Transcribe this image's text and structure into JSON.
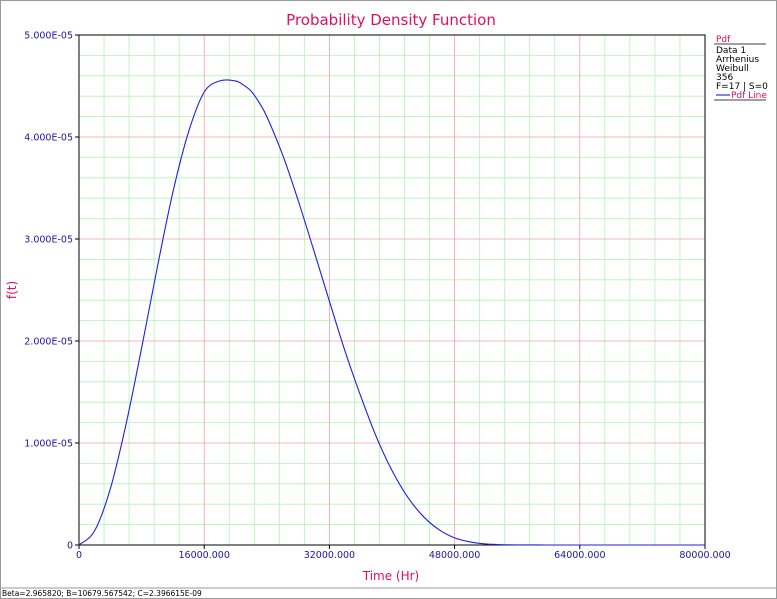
{
  "chart_data": {
    "type": "line",
    "title": "Probability Density Function",
    "xlabel": "Time (Hr)",
    "ylabel": "f(t)",
    "xlim": [
      0,
      80000
    ],
    "ylim": [
      0,
      5e-05
    ],
    "x_ticks": [
      0,
      16000,
      32000,
      48000,
      64000,
      80000
    ],
    "x_tick_labels": [
      "0",
      "16000.000",
      "32000.000",
      "48000.000",
      "64000.000",
      "80000.000"
    ],
    "y_ticks": [
      0,
      1e-05,
      2e-05,
      3e-05,
      4e-05,
      5e-05
    ],
    "y_tick_labels": [
      "0",
      "1.000E-05",
      "2.000E-05",
      "3.000E-05",
      "4.000E-05",
      "5.000E-05"
    ],
    "grid": true,
    "legend_position": "right",
    "series": [
      {
        "name": "Pdf Line",
        "color": "#1f1fe0",
        "x": [
          0,
          2000,
          4000,
          6000,
          8000,
          10000,
          12000,
          14000,
          16000,
          18000,
          20000,
          21000,
          22000,
          23000,
          24000,
          26000,
          28000,
          30000,
          32000,
          34000,
          36000,
          38000,
          40000,
          42000,
          44000,
          46000,
          48000,
          50000,
          52000,
          54000,
          56000,
          60000,
          64000,
          68000,
          72000,
          76000,
          80000
        ],
        "y": [
          0,
          1.4e-06,
          5.5e-06,
          1.18e-05,
          1.93e-05,
          2.72e-05,
          3.46e-05,
          4.05e-05,
          4.44e-05,
          4.55e-05,
          4.55e-05,
          4.51e-05,
          4.45e-05,
          4.34e-05,
          4.2e-05,
          3.83e-05,
          3.38e-05,
          2.89e-05,
          2.39e-05,
          1.9e-05,
          1.46e-05,
          1.06e-05,
          7.3e-06,
          4.7e-06,
          2.8e-06,
          1.5e-06,
          7e-07,
          3e-07,
          1e-07,
          3e-08,
          1e-08,
          0,
          0,
          0,
          0,
          0,
          0
        ]
      }
    ]
  },
  "legend": {
    "header": "Pdf",
    "lines": [
      "Data 1",
      "Arrhenius",
      "Weibull",
      "356",
      "F=17 | S=0"
    ],
    "series_label": "Pdf Line"
  },
  "footer": {
    "text": "Beta=2.965820; B=10679.567542; C=2.396615E-09"
  },
  "colors": {
    "title": "#e0105a",
    "tick_text": "#1a1aa0",
    "major_grid": "#f2a0a8",
    "minor_grid": "#b8f0b8",
    "curve": "#1f1fe0"
  }
}
